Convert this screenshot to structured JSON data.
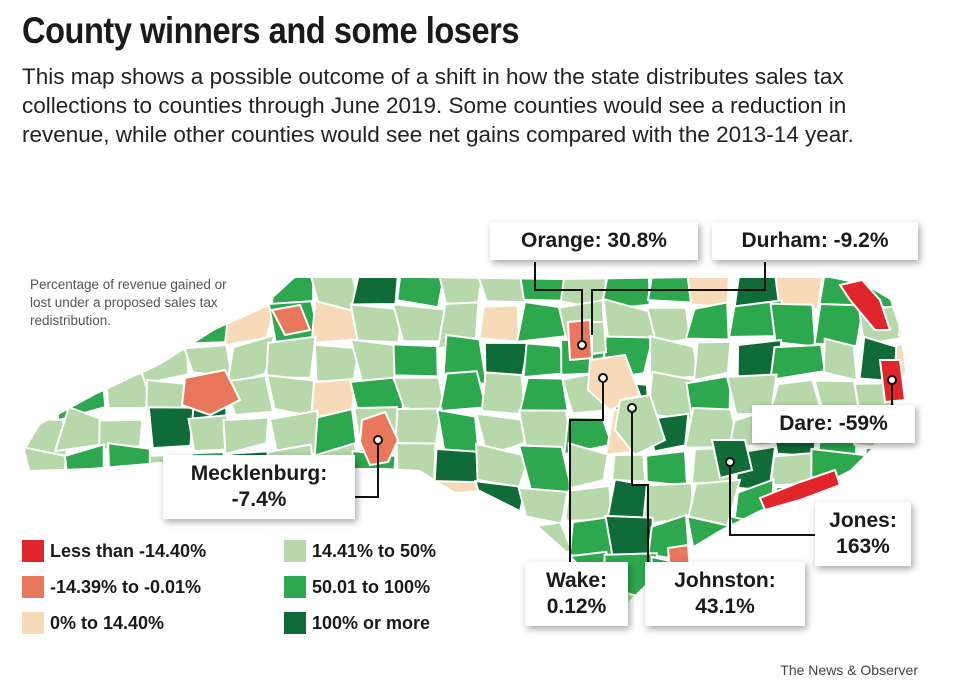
{
  "header": {
    "title": "County winners and some losers",
    "subtitle": "This map shows a possible outcome of a shift in how the state distributes sales tax collections to counties through June 2019. Some counties would see a reduction in revenue, while other counties would see net gains compared with the 2013-14 year."
  },
  "map_note": "Percentage of revenue gained or lost under a proposed sales tax redistribution.",
  "colors": {
    "less_than_neg_14_40": "#e0262b",
    "neg_14_39_to_neg_0_01": "#e8775c",
    "0_to_14_40": "#f7dbb8",
    "14_41_to_50": "#b7d8aa",
    "50_01_to_100": "#2ea84f",
    "100_or_more": "#0f6b37"
  },
  "legend": [
    {
      "label": "Less than -14.40%",
      "color": "#e0262b"
    },
    {
      "label": "-14.39% to -0.01%",
      "color": "#e8775c"
    },
    {
      "label": "0% to 14.40%",
      "color": "#f7dbb8"
    },
    {
      "label": "14.41% to 50%",
      "color": "#b7d8aa"
    },
    {
      "label": "50.01 to 100%",
      "color": "#2ea84f"
    },
    {
      "label": "100% or more",
      "color": "#0f6b37"
    }
  ],
  "callouts": {
    "orange": {
      "name": "Orange:",
      "value": "30.8%"
    },
    "durham": {
      "name": "Durham:",
      "value": "-9.2%"
    },
    "dare": {
      "name": "Dare:",
      "value": "-59%"
    },
    "mecklenburg": {
      "name": "Mecklenburg:",
      "value": "-7.4%"
    },
    "jones": {
      "name": "Jones:",
      "value": "163%"
    },
    "wake": {
      "name": "Wake:",
      "value": "0.12%"
    },
    "johnston": {
      "name": "Johnston:",
      "value": "43.1%"
    }
  },
  "credit": "The News & Observer"
}
